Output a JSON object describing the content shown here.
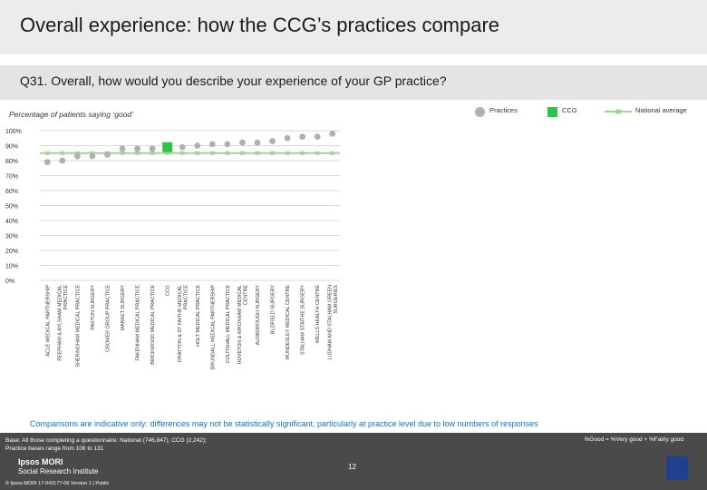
{
  "title": "Overall experience: how the CCG’s practices compare",
  "question": "Q31. Overall, how would you describe your experience of your GP practice?",
  "subtitle": "Percentage of patients saying ‘good’",
  "legend": {
    "practices": "Practices",
    "ccg": "CCG",
    "national": "National average"
  },
  "colors": {
    "practice": "#b0b0b0",
    "ccg": "#2ec24a",
    "national": "#a6d19a",
    "grid": "#d9d9d9"
  },
  "chart_data": {
    "type": "scatter",
    "y_ticks": [
      "100%",
      "90%",
      "80%",
      "70%",
      "60%",
      "50%",
      "40%",
      "30%",
      "20%",
      "10%",
      "0%"
    ],
    "ylim": [
      0,
      100
    ],
    "national_average": 85,
    "categories": [
      "ACLE MEDICAL PARTNERSHIP",
      "REEPHAM & AYLSHAM MEDICAL PRACTICE",
      "SHERINGHAM MEDICAL PRACTICE",
      "PASTON SURGERY",
      "CROMER GROUP PRACTICE",
      "MARKET SURGERY",
      "FAKENHAM MEDICAL PRACTICE",
      "BRICKWOOD MEDICAL PRACTICE",
      "CCG",
      "DRAYTON & ST FAITHS MEDICAL PRACTICE",
      "HOLT MEDICAL PRACTICE",
      "BRUNDALL MEDICAL PARTNERSHIP",
      "COLTISHALL MEDICAL PRACTICE",
      "HOVETON & WROXHAM MEDICAL CENTRE",
      "ALDBOROUGH SURGERY",
      "BLOFIELD SURGERY",
      "MUNDESLEY MEDICAL CENTRE",
      "STALHAM STAITHE SURGERY",
      "WELLS HEALTH CENTRE",
      "LUDHAM AND STALHAM GREEN SURGERIES"
    ],
    "values": [
      79,
      80,
      83,
      83,
      84,
      88,
      88,
      88,
      89,
      89,
      90,
      91,
      91,
      92,
      92,
      93,
      95,
      96,
      96,
      98
    ],
    "ccg_index": 8
  },
  "footnote": "Comparisons are indicative only: differences may not be statistically significant, particularly at practice level due to low numbers of responses",
  "footer": {
    "base_line1": "Base: All those completing a questionnaire: National (746,847); CCG (2,242);",
    "base_line2": "Practice bases range from 106 to 131",
    "good_def": "%Good = %Very good + %Fairly good",
    "logo_line1": "Ipsos MORI",
    "logo_line2": "Social Research Institute",
    "copyright": "© Ipsos MORI     17-043177-06 Version 1 | Public",
    "page": "12"
  }
}
